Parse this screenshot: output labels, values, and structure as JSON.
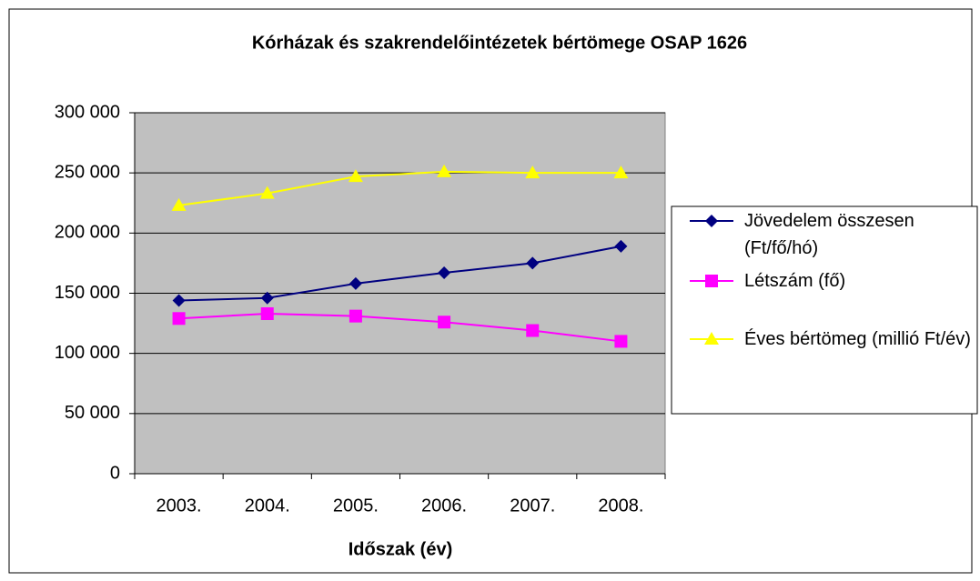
{
  "chart_data": {
    "type": "line",
    "title": "Kórházak és szakrendelőintézetek bértömege OSAP 1626",
    "x_label": "Időszak (év)",
    "categories": [
      "2003.",
      "2004.",
      "2005.",
      "2006.",
      "2007.",
      "2008."
    ],
    "series": [
      {
        "name": "Jövedelem összesen (Ft/fő/hó)",
        "color": "#000080",
        "marker": "diamond",
        "values": [
          144000,
          146000,
          158000,
          167000,
          175000,
          189000
        ]
      },
      {
        "name": "Létszám (fő)",
        "color": "#ff00ff",
        "marker": "square",
        "values": [
          129000,
          133000,
          131000,
          126000,
          119000,
          110000
        ]
      },
      {
        "name": "Éves bértömeg (millió Ft/év)",
        "color": "#ffff00",
        "marker": "triangle",
        "values": [
          223000,
          233000,
          247000,
          251000,
          250000,
          250000
        ]
      }
    ],
    "ylim": [
      0,
      300000
    ],
    "yticks": [
      {
        "value": 0,
        "label": "0"
      },
      {
        "value": 50000,
        "label": "50 000"
      },
      {
        "value": 100000,
        "label": "100 000"
      },
      {
        "value": 150000,
        "label": "150 000"
      },
      {
        "value": 200000,
        "label": "200 000"
      },
      {
        "value": 250000,
        "label": "250 000"
      },
      {
        "value": 300000,
        "label": "300 000"
      }
    ],
    "grid": true,
    "legend": "right"
  }
}
